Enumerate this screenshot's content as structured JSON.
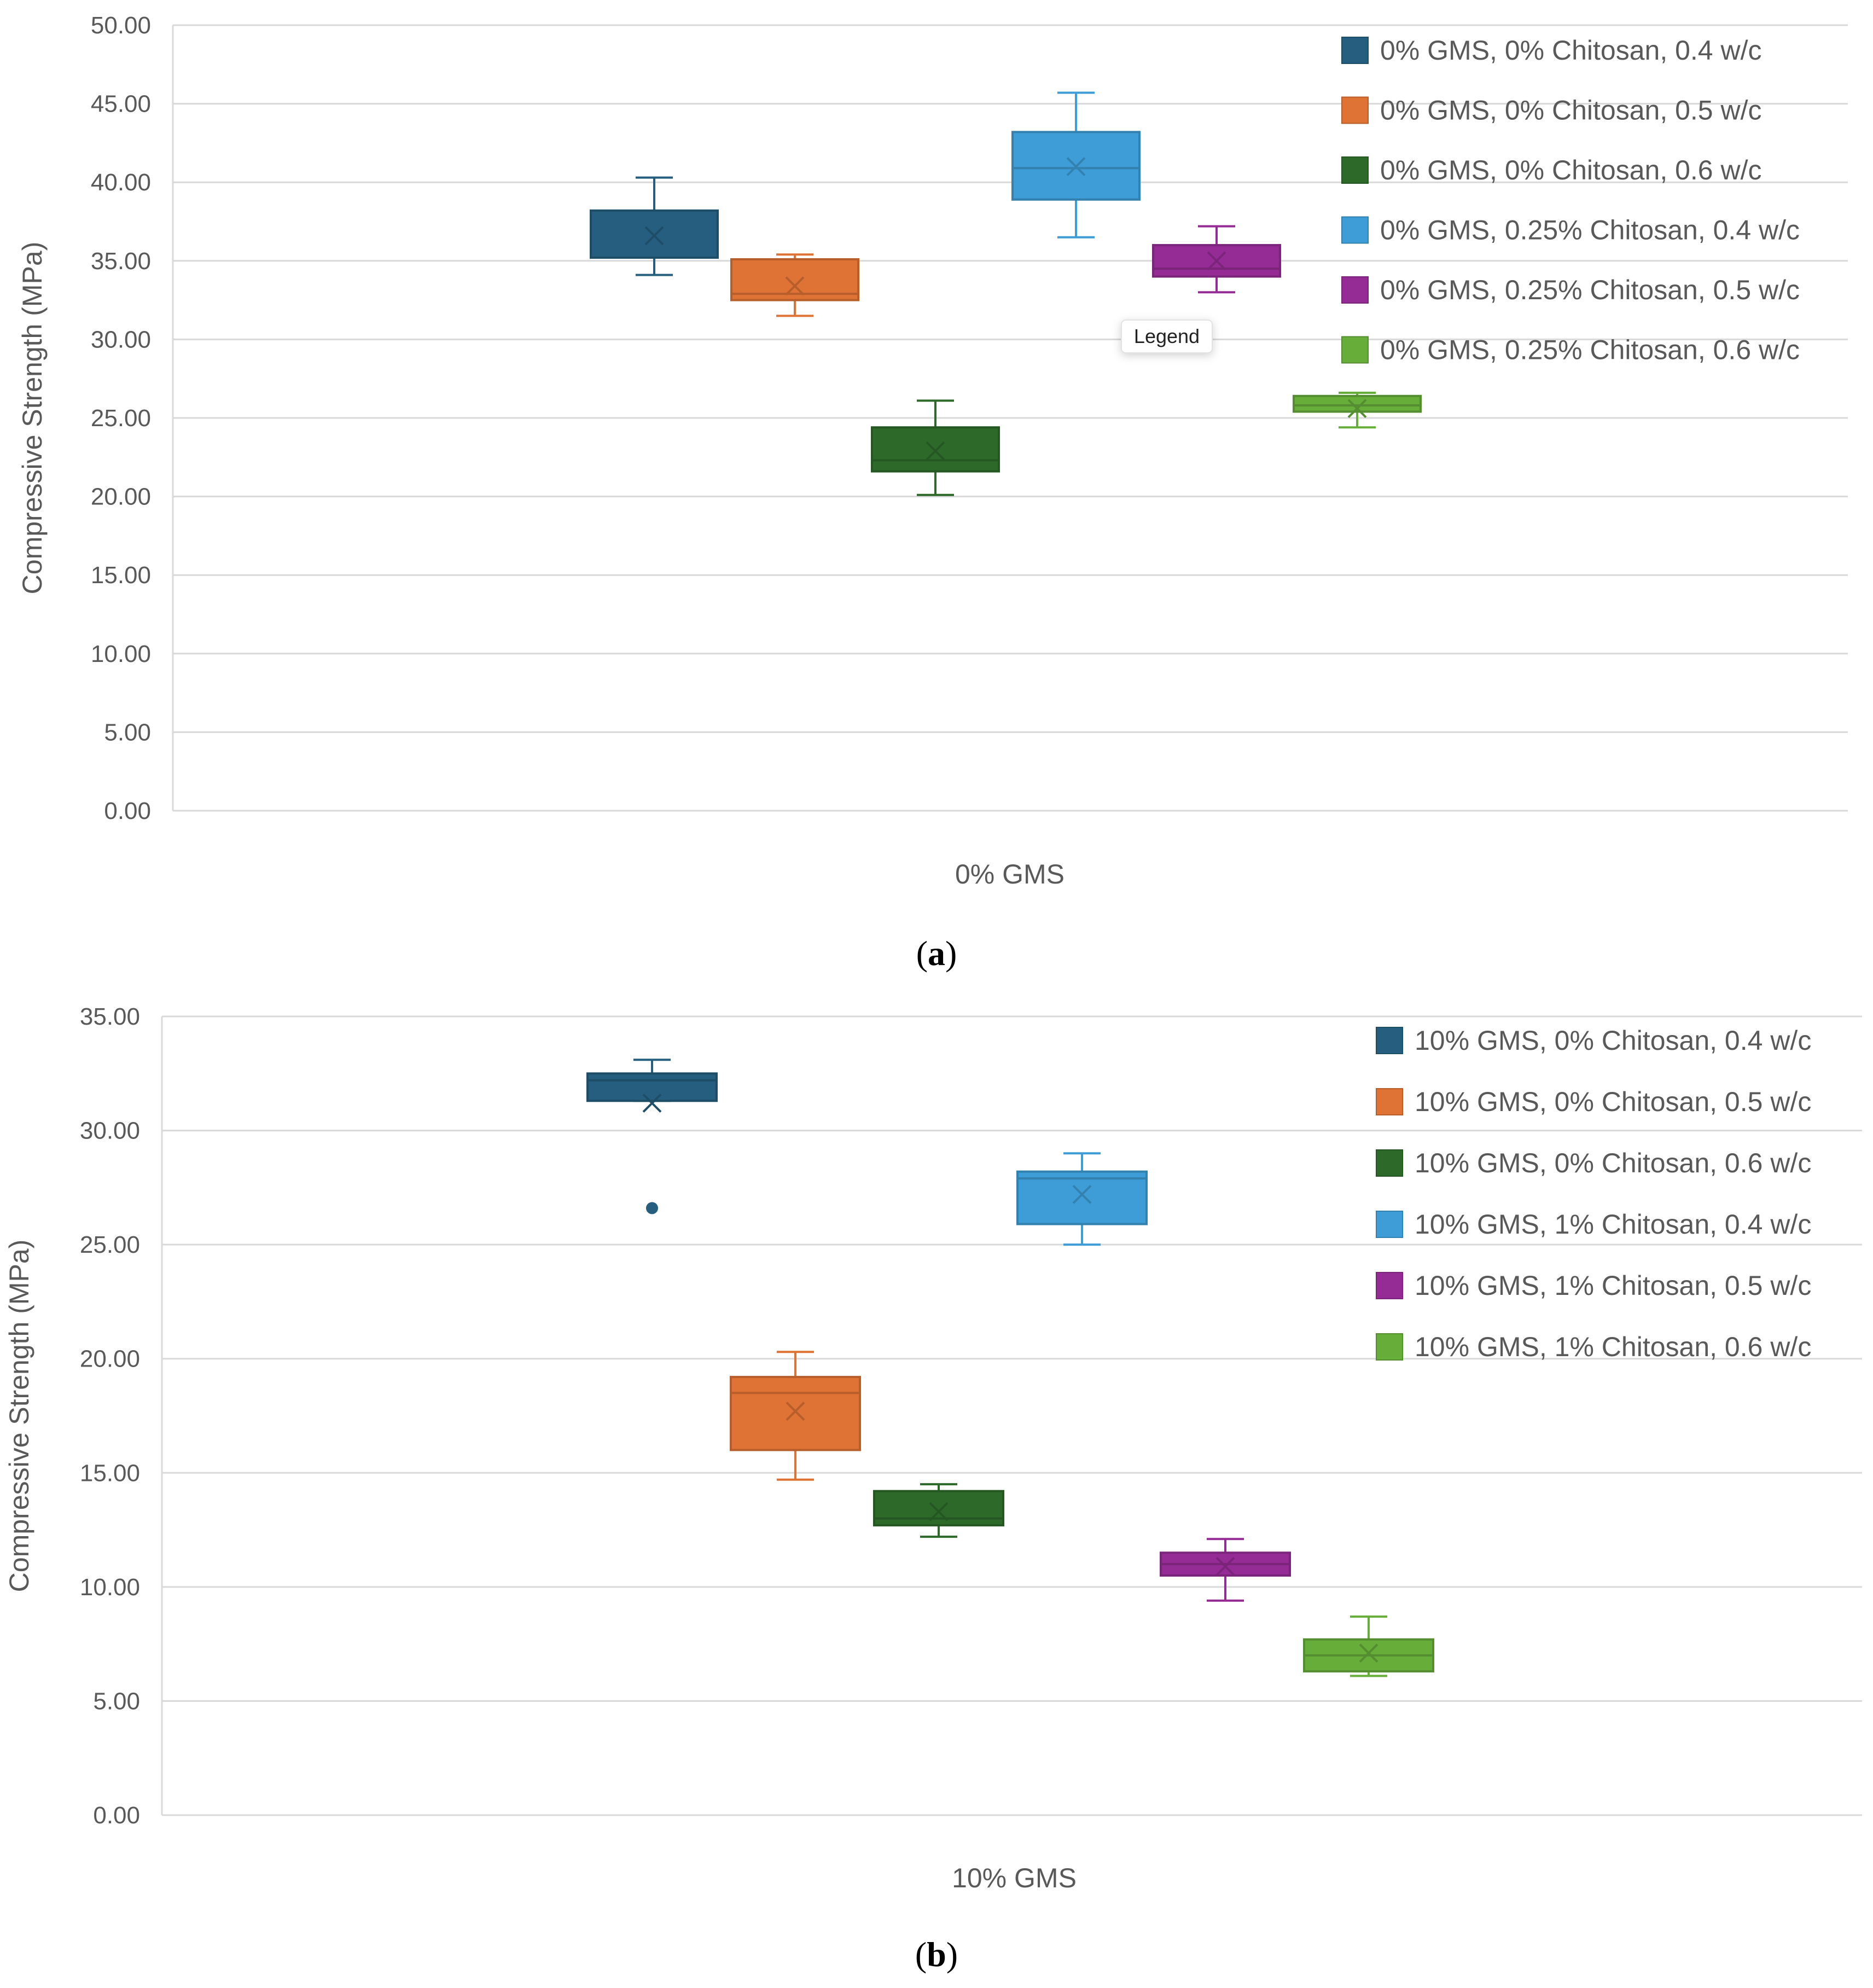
{
  "chart_data": [
    {
      "type": "box",
      "caption": "a",
      "ylabel": "Compressive Strength (MPa)",
      "xlabel": "0% GMS",
      "ylim": [
        0,
        50
      ],
      "yticks": [
        "0.00",
        "5.00",
        "10.00",
        "15.00",
        "20.00",
        "25.00",
        "30.00",
        "35.00",
        "40.00",
        "45.00",
        "50.00"
      ],
      "legend_position": "top-right",
      "tooltip": "Legend",
      "series": [
        {
          "name": "0% GMS, 0% Chitosan, 0.4 w/c",
          "color": "#255e7e",
          "min": 34.1,
          "q1": 35.2,
          "median": 35.2,
          "q3": 38.2,
          "max": 40.3,
          "mean": 36.6,
          "outliers": []
        },
        {
          "name": "0% GMS, 0% Chitosan, 0.5 w/c",
          "color": "#df7335",
          "min": 31.5,
          "q1": 32.5,
          "median": 32.9,
          "q3": 35.1,
          "max": 35.4,
          "mean": 33.4,
          "outliers": []
        },
        {
          "name": "0% GMS, 0% Chitosan, 0.6 w/c",
          "color": "#2d6a2a",
          "min": 20.1,
          "q1": 21.6,
          "median": 22.3,
          "q3": 24.4,
          "max": 26.1,
          "mean": 22.9,
          "outliers": []
        },
        {
          "name": "0% GMS, 0.25% Chitosan, 0.4 w/c",
          "color": "#3e9dd6",
          "min": 36.5,
          "q1": 38.9,
          "median": 40.9,
          "q3": 43.2,
          "max": 45.7,
          "mean": 41.0,
          "outliers": []
        },
        {
          "name": "0% GMS, 0.25% Chitosan, 0.5 w/c",
          "color": "#952c95",
          "min": 33.0,
          "q1": 34.0,
          "median": 34.5,
          "q3": 36.0,
          "max": 37.2,
          "mean": 35.0,
          "outliers": []
        },
        {
          "name": "0% GMS, 0.25% Chitosan, 0.6 w/c",
          "color": "#67ad3a",
          "min": 24.4,
          "q1": 25.4,
          "median": 25.8,
          "q3": 26.4,
          "max": 26.6,
          "mean": 25.6,
          "outliers": []
        }
      ]
    },
    {
      "type": "box",
      "caption": "b",
      "ylabel": "Compressive Strength (MPa)",
      "xlabel": "10% GMS",
      "ylim": [
        0,
        35
      ],
      "yticks": [
        "0.00",
        "5.00",
        "10.00",
        "15.00",
        "20.00",
        "25.00",
        "30.00",
        "35.00"
      ],
      "legend_position": "top-right",
      "series": [
        {
          "name": "10% GMS, 0% Chitosan, 0.4 w/c",
          "color": "#255e7e",
          "min": 31.3,
          "q1": 31.3,
          "median": 32.2,
          "q3": 32.5,
          "max": 33.1,
          "mean": 31.2,
          "outliers": [
            26.6
          ]
        },
        {
          "name": "10% GMS, 0% Chitosan, 0.5 w/c",
          "color": "#df7335",
          "min": 14.7,
          "q1": 16.0,
          "median": 18.5,
          "q3": 19.2,
          "max": 20.3,
          "mean": 17.7,
          "outliers": []
        },
        {
          "name": "10% GMS, 0% Chitosan, 0.6 w/c",
          "color": "#2d6a2a",
          "min": 12.2,
          "q1": 12.7,
          "median": 13.0,
          "q3": 14.2,
          "max": 14.5,
          "mean": 13.3,
          "outliers": []
        },
        {
          "name": "10% GMS, 1% Chitosan, 0.4 w/c",
          "color": "#3e9dd6",
          "min": 25.0,
          "q1": 25.9,
          "median": 27.9,
          "q3": 28.2,
          "max": 29.0,
          "mean": 27.2,
          "outliers": []
        },
        {
          "name": "10% GMS, 1% Chitosan, 0.5 w/c",
          "color": "#952c95",
          "min": 9.4,
          "q1": 10.5,
          "median": 11.0,
          "q3": 11.5,
          "max": 12.1,
          "mean": 10.9,
          "outliers": []
        },
        {
          "name": "10% GMS, 1% Chitosan, 0.6 w/c",
          "color": "#67ad3a",
          "min": 6.1,
          "q1": 6.3,
          "median": 7.0,
          "q3": 7.7,
          "max": 8.7,
          "mean": 7.1,
          "outliers": []
        }
      ]
    }
  ]
}
